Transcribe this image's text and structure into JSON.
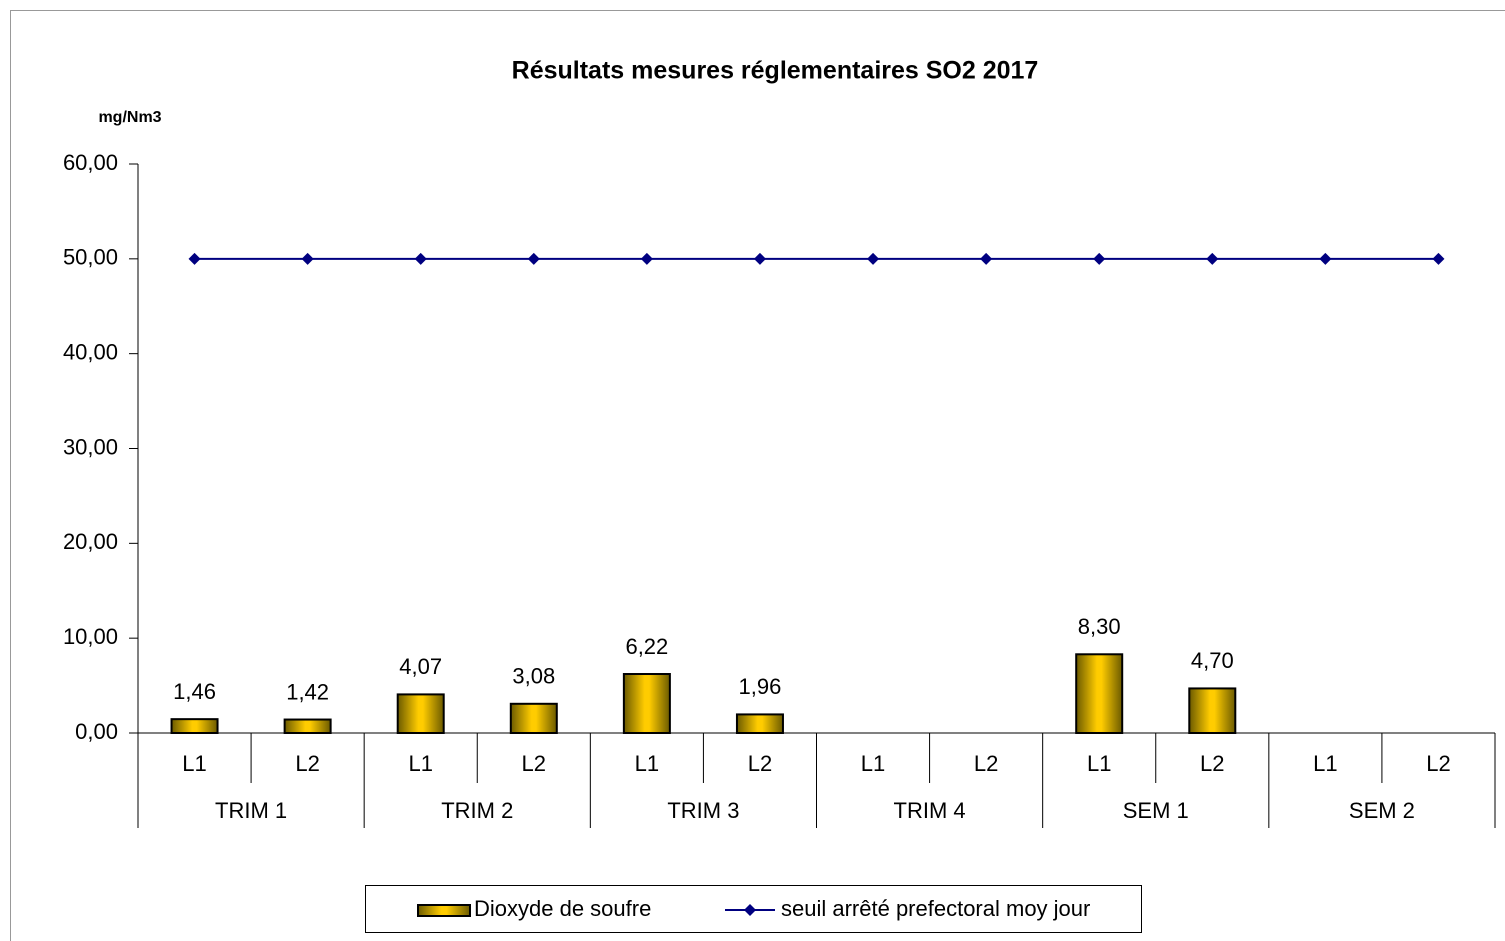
{
  "chart_data": {
    "type": "bar",
    "title": "Résultats mesures réglementaires SO2 2017",
    "y_axis_label": "mg/Nm3",
    "categories": [
      "L1",
      "L2",
      "L1",
      "L2",
      "L1",
      "L2",
      "L1",
      "L2",
      "L1",
      "L2",
      "L1",
      "L2"
    ],
    "groups": [
      "TRIM 1",
      "TRIM 2",
      "TRIM 3",
      "TRIM 4",
      "SEM 1",
      "SEM 2"
    ],
    "series": [
      {
        "name": "Dioxyde de soufre",
        "type": "bar",
        "color": "#ffcc00",
        "values": [
          1.46,
          1.42,
          4.07,
          3.08,
          6.22,
          1.96,
          null,
          null,
          8.3,
          4.7,
          null,
          null
        ],
        "value_labels": [
          "1,46",
          "1,42",
          "4,07",
          "3,08",
          "6,22",
          "1,96",
          null,
          null,
          "8,30",
          "4,70",
          null,
          null
        ]
      },
      {
        "name": "seuil arrêté prefectoral moy jour",
        "type": "line",
        "color": "#000080",
        "values": [
          50,
          50,
          50,
          50,
          50,
          50,
          50,
          50,
          50,
          50,
          50,
          50
        ]
      }
    ],
    "ylim": [
      0,
      60
    ],
    "yticks": [
      {
        "value": 0,
        "label": "0,00"
      },
      {
        "value": 10,
        "label": "10,00"
      },
      {
        "value": 20,
        "label": "20,00"
      },
      {
        "value": 30,
        "label": "30,00"
      },
      {
        "value": 40,
        "label": "40,00"
      },
      {
        "value": 50,
        "label": "50,00"
      },
      {
        "value": 60,
        "label": "60,00"
      }
    ],
    "legend": "bottom"
  }
}
